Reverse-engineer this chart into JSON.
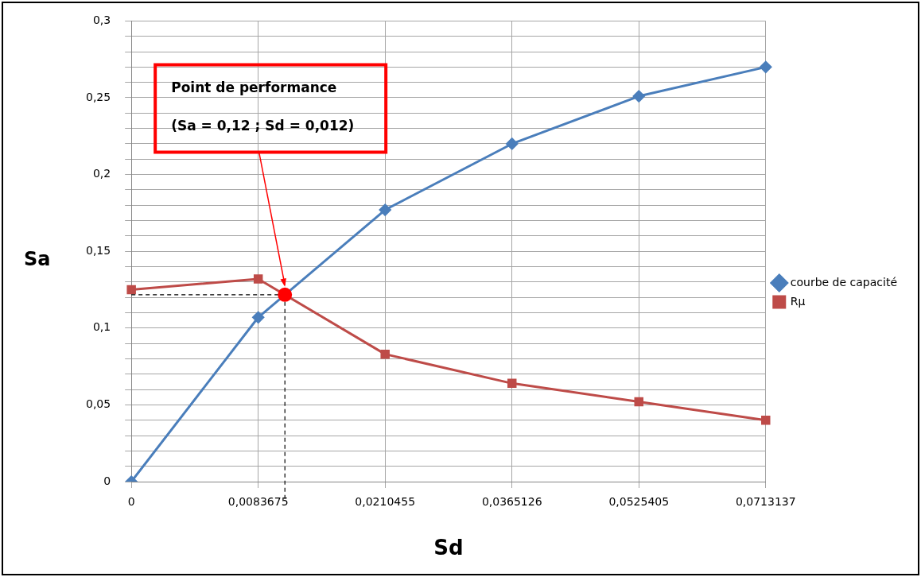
{
  "chart_data": {
    "type": "line",
    "xlabel": "Sd",
    "ylabel": "Sa",
    "categories": [
      "0",
      "0,0083675",
      "0,0210455",
      "0,0365126",
      "0,0525405",
      "0,0713137"
    ],
    "series": [
      {
        "name": "courbe de capacité",
        "color": "#4a7ebb",
        "marker": "diamond",
        "values": [
          0,
          0.107,
          0.177,
          0.22,
          0.251,
          0.27
        ]
      },
      {
        "name": "Rμ",
        "color": "#be4b48",
        "marker": "square",
        "values": [
          0.125,
          0.132,
          0.083,
          0.064,
          0.052,
          0.04
        ]
      }
    ],
    "ylim": [
      0,
      0.3
    ],
    "yticks": [
      {
        "value": 0,
        "label": "0"
      },
      {
        "value": 0.01,
        "label": null
      },
      {
        "value": 0.02,
        "label": null
      },
      {
        "value": 0.03,
        "label": null
      },
      {
        "value": 0.04,
        "label": null
      },
      {
        "value": 0.05,
        "label": "0,05"
      },
      {
        "value": 0.06,
        "label": null
      },
      {
        "value": 0.07,
        "label": null
      },
      {
        "value": 0.08,
        "label": null
      },
      {
        "value": 0.09,
        "label": null
      },
      {
        "value": 0.1,
        "label": "0,1"
      },
      {
        "value": 0.11,
        "label": null
      },
      {
        "value": 0.12,
        "label": null
      },
      {
        "value": 0.13,
        "label": null
      },
      {
        "value": 0.14,
        "label": null
      },
      {
        "value": 0.15,
        "label": "0,15"
      },
      {
        "value": 0.16,
        "label": null
      },
      {
        "value": 0.17,
        "label": null
      },
      {
        "value": 0.18,
        "label": null
      },
      {
        "value": 0.19,
        "label": null
      },
      {
        "value": 0.2,
        "label": "0,2"
      },
      {
        "value": 0.21,
        "label": null
      },
      {
        "value": 0.22,
        "label": null
      },
      {
        "value": 0.23,
        "label": null
      },
      {
        "value": 0.24,
        "label": null
      },
      {
        "value": 0.25,
        "label": "0,25"
      },
      {
        "value": 0.26,
        "label": null
      },
      {
        "value": 0.27,
        "label": null
      },
      {
        "value": 0.28,
        "label": null
      },
      {
        "value": 0.29,
        "label": null
      },
      {
        "value": 0.3,
        "label": "0,3"
      }
    ],
    "grid": true,
    "legend": "right",
    "annotations": [
      "Point de performance",
      "(Sa = 0,12 ; Sd = 0,012)"
    ]
  }
}
